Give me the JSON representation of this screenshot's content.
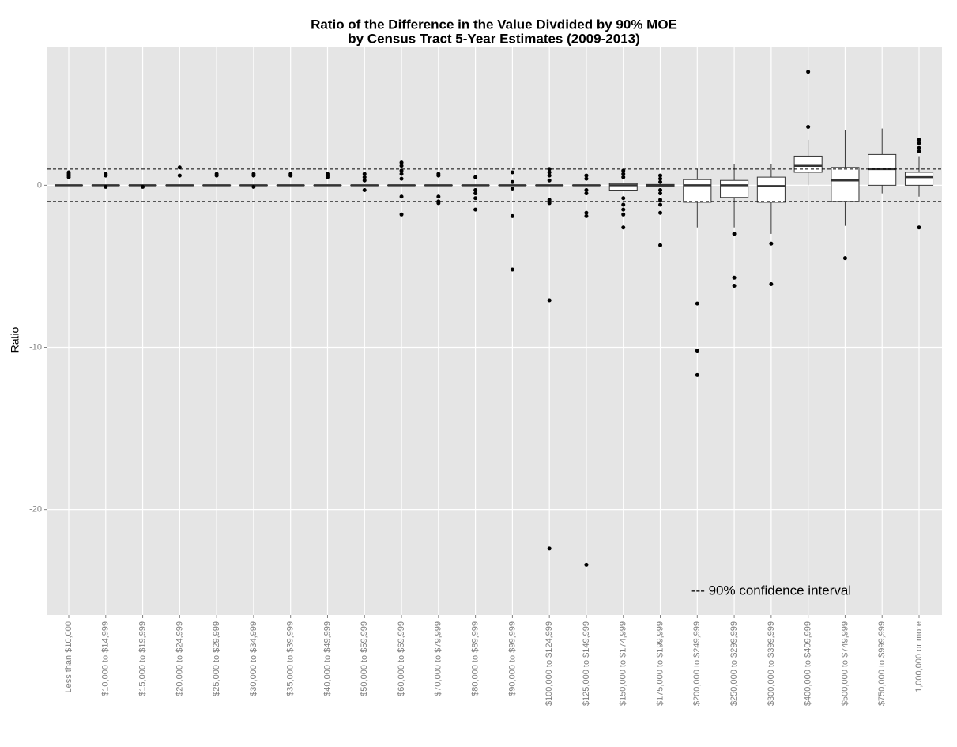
{
  "chart_data": {
    "type": "boxplot",
    "title": "Ratio of the Difference in the Value Divdided by 90% MOE",
    "subtitle": "by Census Tract 5-Year Estimates (2009-2013)",
    "y_label": "Ratio",
    "annotation": "--- 90% confidence interval",
    "categories": [
      "Less than $10,000",
      "$10,000 to $14,999",
      "$15,000 to $19,999",
      "$20,000 to $24,999",
      "$25,000 to $29,999",
      "$30,000 to $34,999",
      "$35,000 to $39,999",
      "$40,000 to $49,999",
      "$50,000 to $59,999",
      "$60,000 to $69,999",
      "$70,000 to $79,999",
      "$80,000 to $89,999",
      "$90,000 to $99,999",
      "$100,000 to $124,999",
      "$125,000 to $149,999",
      "$150,000 to $174,999",
      "$175,000 to $199,999",
      "$200,000 to $249,999",
      "$250,000 to $299,999",
      "$300,000 to $399,999",
      "$400,000 to $409,999",
      "$500,000 to $749,999",
      "$750,000 to $999,999",
      "1,000,000 or more"
    ],
    "boxes": [
      {
        "whisker_low": 0,
        "q1": 0,
        "median": 0,
        "q3": 0,
        "whisker_high": 0,
        "outliers": [
          0.5,
          0.6,
          0.7,
          0.8
        ]
      },
      {
        "whisker_low": 0,
        "q1": 0,
        "median": 0,
        "q3": 0,
        "whisker_high": 0,
        "outliers": [
          0.6,
          0.7,
          -0.1
        ]
      },
      {
        "whisker_low": 0,
        "q1": 0,
        "median": 0,
        "q3": 0,
        "whisker_high": 0,
        "outliers": [
          -0.1
        ]
      },
      {
        "whisker_low": 0,
        "q1": 0,
        "median": 0,
        "q3": 0,
        "whisker_high": 0,
        "outliers": [
          1.1,
          0.6
        ]
      },
      {
        "whisker_low": 0,
        "q1": 0,
        "median": 0,
        "q3": 0,
        "whisker_high": 0,
        "outliers": [
          0.6,
          0.7
        ]
      },
      {
        "whisker_low": 0,
        "q1": 0,
        "median": 0,
        "q3": 0,
        "whisker_high": 0,
        "outliers": [
          0.6,
          0.7,
          -0.1
        ]
      },
      {
        "whisker_low": 0,
        "q1": 0,
        "median": 0,
        "q3": 0,
        "whisker_high": 0,
        "outliers": [
          0.6,
          0.7
        ]
      },
      {
        "whisker_low": 0,
        "q1": 0,
        "median": 0,
        "q3": 0,
        "whisker_high": 0,
        "outliers": [
          0.5,
          0.6,
          0.7
        ]
      },
      {
        "whisker_low": 0,
        "q1": 0,
        "median": 0,
        "q3": 0,
        "whisker_high": 0,
        "outliers": [
          0.7,
          0.5,
          0.3,
          -0.3
        ]
      },
      {
        "whisker_low": 0,
        "q1": 0,
        "median": 0,
        "q3": 0,
        "whisker_high": 0,
        "outliers": [
          1.4,
          1.2,
          0.9,
          0.7,
          0.4,
          -0.7,
          -1.8
        ]
      },
      {
        "whisker_low": 0,
        "q1": 0,
        "median": 0,
        "q3": 0,
        "whisker_high": 0,
        "outliers": [
          0.7,
          0.6,
          -0.7,
          -1.0,
          -1.1
        ]
      },
      {
        "whisker_low": 0,
        "q1": 0,
        "median": 0,
        "q3": 0,
        "whisker_high": 0,
        "outliers": [
          0.5,
          -0.3,
          -0.5,
          -0.8,
          -1.5
        ]
      },
      {
        "whisker_low": 0,
        "q1": 0,
        "median": 0,
        "q3": 0,
        "whisker_high": 0,
        "outliers": [
          0.8,
          0.2,
          -0.2,
          -1.9,
          -5.2
        ]
      },
      {
        "whisker_low": 0,
        "q1": 0,
        "median": 0,
        "q3": 0,
        "whisker_high": 0,
        "outliers": [
          1.0,
          0.8,
          0.6,
          0.3,
          -0.9,
          -1.1,
          -7.1,
          -22.4
        ]
      },
      {
        "whisker_low": 0,
        "q1": 0,
        "median": 0,
        "q3": 0,
        "whisker_high": 0,
        "outliers": [
          0.6,
          0.4,
          -0.3,
          -0.5,
          -1.7,
          -1.9,
          -23.4
        ]
      },
      {
        "whisker_low": -0.3,
        "q1": -0.3,
        "median": 0,
        "q3": 0.1,
        "whisker_high": 0.1,
        "outliers": [
          0.9,
          0.7,
          0.5,
          -0.8,
          -1.2,
          -1.5,
          -1.8,
          -2.6
        ]
      },
      {
        "whisker_low": -0.05,
        "q1": -0.05,
        "median": 0,
        "q3": 0.05,
        "whisker_high": 0.05,
        "outliers": [
          0.6,
          0.4,
          0.2,
          -0.3,
          -0.5,
          -0.9,
          -1.2,
          -1.7,
          -3.7
        ]
      },
      {
        "whisker_low": -2.6,
        "q1": -1.05,
        "median": 0,
        "q3": 0.35,
        "whisker_high": 1.0,
        "outliers": [
          -7.3,
          -10.2,
          -11.7
        ]
      },
      {
        "whisker_low": -2.6,
        "q1": -0.75,
        "median": 0,
        "q3": 0.3,
        "whisker_high": 1.3,
        "outliers": [
          -3.0,
          -5.7,
          -6.2
        ]
      },
      {
        "whisker_low": -3.0,
        "q1": -1.05,
        "median": -0.05,
        "q3": 0.5,
        "whisker_high": 1.3,
        "outliers": [
          -3.6,
          -6.1
        ]
      },
      {
        "whisker_low": 0,
        "q1": 0.8,
        "median": 1.2,
        "q3": 1.8,
        "whisker_high": 2.8,
        "outliers": [
          3.6,
          7.0
        ]
      },
      {
        "whisker_low": -2.5,
        "q1": -1.0,
        "median": 0.3,
        "q3": 1.1,
        "whisker_high": 3.4,
        "outliers": [
          -4.5
        ]
      },
      {
        "whisker_low": -0.5,
        "q1": 0,
        "median": 1.0,
        "q3": 1.9,
        "whisker_high": 3.5,
        "outliers": []
      },
      {
        "whisker_low": -0.7,
        "q1": 0,
        "median": 0.5,
        "q3": 0.8,
        "whisker_high": 1.8,
        "outliers": [
          2.1,
          2.3,
          2.6,
          2.8,
          -2.6
        ]
      }
    ],
    "reference_lines": [
      1,
      -1
    ],
    "ylim": [
      -26.5,
      8.5
    ],
    "yticks": [
      -20,
      -10,
      0
    ],
    "grid": true
  }
}
